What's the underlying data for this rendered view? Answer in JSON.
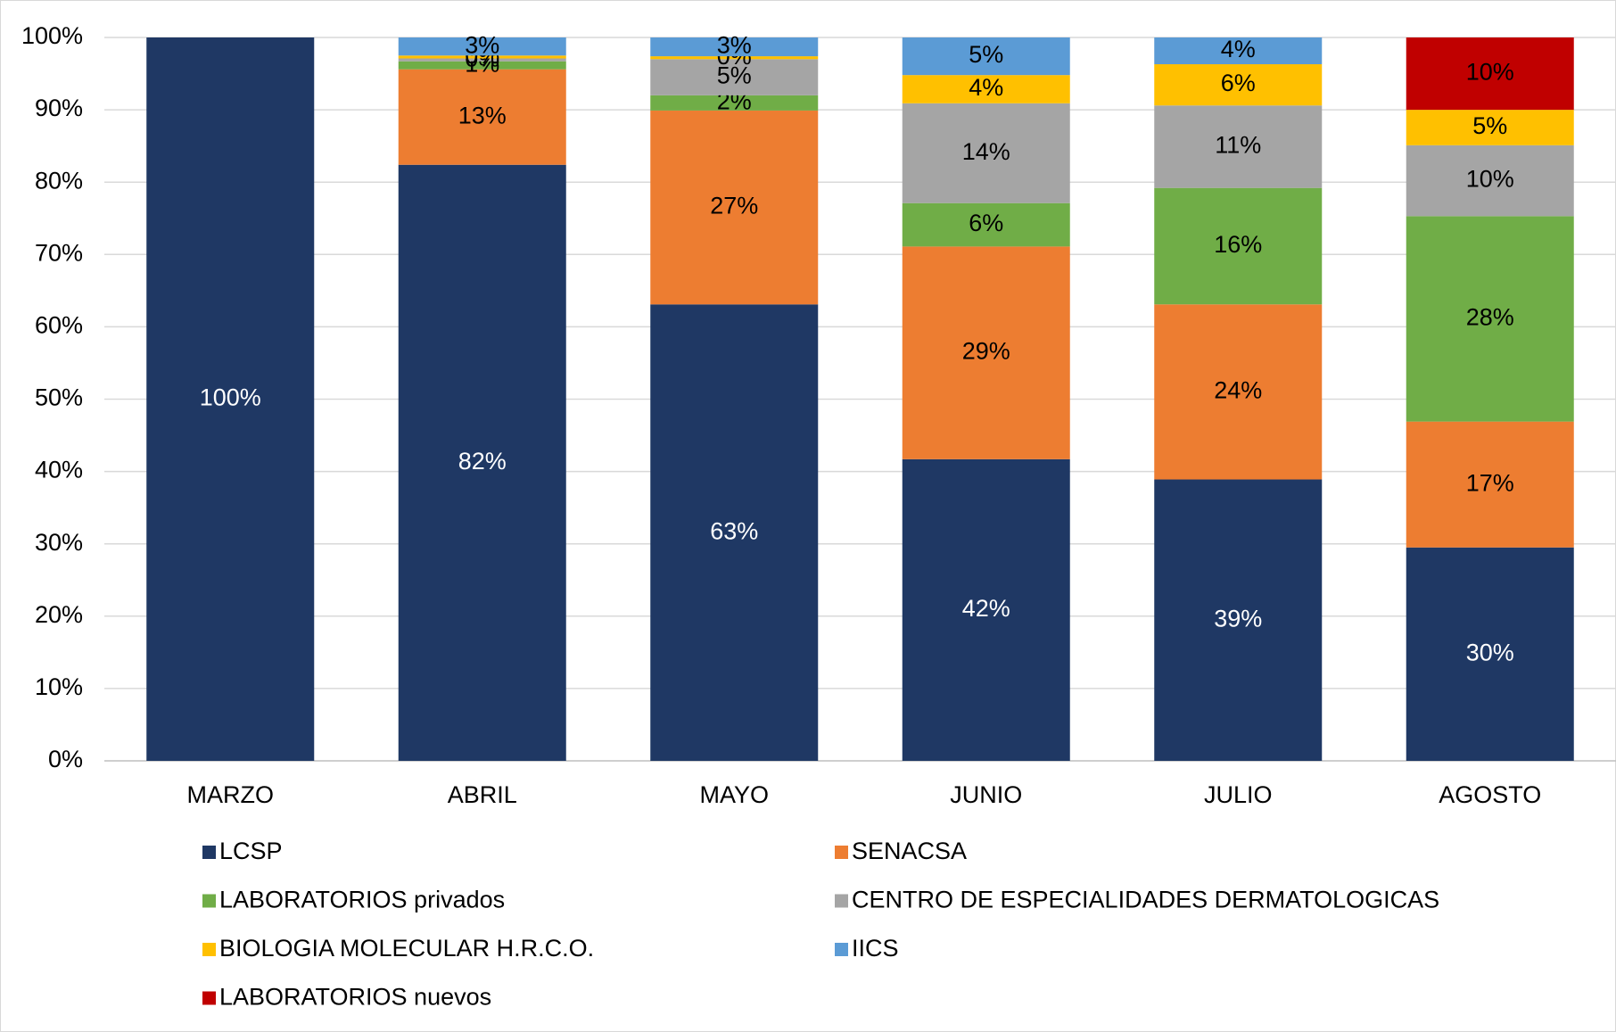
{
  "chart_data": {
    "type": "stacked_bar",
    "categories": [
      "MARZO",
      "ABRIL",
      "MAYO",
      "JUNIO",
      "JULIO",
      "AGOSTO"
    ],
    "series": [
      {
        "name": "LCSP",
        "color": "#1f3864",
        "values": [
          100,
          82.4,
          63.1,
          41.7,
          38.9,
          29.5
        ],
        "value_labels": [
          "100%",
          "82%",
          "63%",
          "42%",
          "39%",
          "30%"
        ]
      },
      {
        "name": "SENACSA",
        "color": "#ed7d31",
        "values": [
          0,
          13.2,
          26.8,
          29.4,
          24.2,
          17.4
        ],
        "value_labels": [
          null,
          "13%",
          "27%",
          "29%",
          "24%",
          "17%"
        ]
      },
      {
        "name": "LABORATORIOS privados",
        "color": "#70ad47",
        "values": [
          0,
          1.1,
          2.1,
          6.0,
          16.1,
          28.4
        ],
        "value_labels": [
          null,
          "1%",
          "2%",
          "6%",
          "16%",
          "28%"
        ]
      },
      {
        "name": "CENTRO DE ESPECIALIDADES DERMATOLOGICAS",
        "color": "#a5a5a5",
        "values": [
          0,
          0.4,
          5.0,
          13.8,
          11.4,
          9.8
        ],
        "value_labels": [
          null,
          "0%",
          "5%",
          "14%",
          "11%",
          "10%"
        ]
      },
      {
        "name": "BIOLOGIA MOLECULAR H.R.C.O.",
        "color": "#ffc000",
        "values": [
          0,
          0.4,
          0.4,
          3.9,
          5.7,
          4.9
        ],
        "value_labels": [
          null,
          "0%",
          "0%",
          "4%",
          "6%",
          "5%"
        ]
      },
      {
        "name": "IICS",
        "color": "#5b9bd5",
        "values": [
          0,
          2.5,
          2.6,
          5.2,
          3.7,
          0
        ],
        "value_labels": [
          null,
          "3%",
          "3%",
          "5%",
          "4%",
          null
        ]
      },
      {
        "name": "LABORATORIOS nuevos",
        "color": "#c00000",
        "values": [
          0,
          0,
          0,
          0,
          0,
          10.0
        ],
        "value_labels": [
          null,
          null,
          null,
          null,
          null,
          "10%"
        ]
      }
    ],
    "ylim": [
      0,
      100
    ],
    "yticks": [
      {
        "value": 0,
        "label": "0%"
      },
      {
        "value": 10,
        "label": "10%"
      },
      {
        "value": 20,
        "label": "20%"
      },
      {
        "value": 30,
        "label": "30%"
      },
      {
        "value": 40,
        "label": "40%"
      },
      {
        "value": 50,
        "label": "50%"
      },
      {
        "value": 60,
        "label": "60%"
      },
      {
        "value": 70,
        "label": "70%"
      },
      {
        "value": 80,
        "label": "80%"
      },
      {
        "value": 90,
        "label": "90%"
      },
      {
        "value": 100,
        "label": "100%"
      }
    ],
    "grid": true,
    "legend": "bottom"
  }
}
